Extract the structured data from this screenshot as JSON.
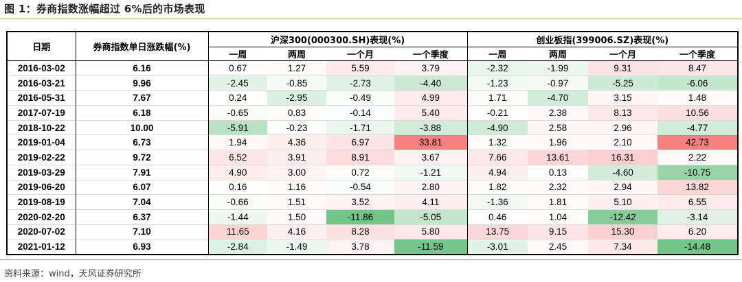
{
  "title": "图 1：券商指数涨幅超过 6%后的市场表现",
  "source": "资料来源：wind，天风证券研究所",
  "headers": {
    "date": "日期",
    "change": "券商指数单日涨跌幅(%)",
    "hs300": "沪深300(000300.SH)表现(%)",
    "cyb": "创业板指(399006.SZ)表现(%)",
    "periods": [
      "一周",
      "两周",
      "一个月",
      "一个季度"
    ]
  },
  "rows": [
    {
      "date": "2016-03-02",
      "chg": "6.16",
      "hs": [
        "0.67",
        "1.27",
        "5.59",
        "3.79"
      ],
      "cy": [
        "-2.32",
        "-1.99",
        "9.31",
        "8.47"
      ]
    },
    {
      "date": "2016-03-21",
      "chg": "9.96",
      "hs": [
        "-2.45",
        "-0.85",
        "-2.73",
        "-4.40"
      ],
      "cy": [
        "-1.23",
        "-0.97",
        "-5.25",
        "-6.06"
      ]
    },
    {
      "date": "2016-05-31",
      "chg": "7.67",
      "hs": [
        "0.24",
        "-2.95",
        "-0.49",
        "4.99"
      ],
      "cy": [
        "1.71",
        "-4.70",
        "3.15",
        "1.48"
      ]
    },
    {
      "date": "2017-07-19",
      "chg": "6.18",
      "hs": [
        "-0.65",
        "0.83",
        "-0.14",
        "5.40"
      ],
      "cy": [
        "-0.21",
        "2.38",
        "8.13",
        "10.56"
      ]
    },
    {
      "date": "2018-10-22",
      "chg": "10.00",
      "hs": [
        "-5.91",
        "-0.23",
        "-1.71",
        "-3.88"
      ],
      "cy": [
        "-4.90",
        "2.58",
        "2.96",
        "-4.77"
      ]
    },
    {
      "date": "2019-01-04",
      "chg": "6.73",
      "hs": [
        "1.94",
        "4.36",
        "6.97",
        "33.81"
      ],
      "cy": [
        "1.32",
        "1.96",
        "2.10",
        "42.73"
      ]
    },
    {
      "date": "2019-02-22",
      "chg": "9.72",
      "hs": [
        "6.52",
        "3.91",
        "8.91",
        "3.67"
      ],
      "cy": [
        "7.66",
        "13.61",
        "16.31",
        "2.22"
      ]
    },
    {
      "date": "2019-03-29",
      "chg": "7.91",
      "hs": [
        "4.90",
        "3.00",
        "0.72",
        "-1.21"
      ],
      "cy": [
        "4.94",
        "0.13",
        "-4.60",
        "-10.75"
      ]
    },
    {
      "date": "2019-06-20",
      "chg": "6.07",
      "hs": [
        "0.16",
        "1.16",
        "-0.54",
        "2.80"
      ],
      "cy": [
        "1.82",
        "2.32",
        "2.94",
        "13.82"
      ]
    },
    {
      "date": "2019-08-19",
      "chg": "7.04",
      "hs": [
        "-0.66",
        "1.51",
        "3.52",
        "4.11"
      ],
      "cy": [
        "-1.36",
        "1.81",
        "5.10",
        "6.55"
      ]
    },
    {
      "date": "2020-02-20",
      "chg": "6.37",
      "hs": [
        "-1.44",
        "1.50",
        "-11.86",
        "-5.05"
      ],
      "cy": [
        "0.46",
        "1.04",
        "-12.42",
        "-3.14"
      ]
    },
    {
      "date": "2020-07-02",
      "chg": "7.10",
      "hs": [
        "11.65",
        "4.16",
        "8.28",
        "5.80"
      ],
      "cy": [
        "13.75",
        "9.15",
        "15.30",
        "6.20"
      ]
    },
    {
      "date": "2021-01-12",
      "chg": "6.93",
      "hs": [
        "-2.84",
        "-1.49",
        "3.78",
        "-11.59"
      ],
      "cy": [
        "-3.01",
        "2.45",
        "7.34",
        "-14.48"
      ]
    }
  ],
  "colors": {
    "positive_base": "#f8696b",
    "negative_base": "#63be7b",
    "neutral": "#ffffff"
  }
}
